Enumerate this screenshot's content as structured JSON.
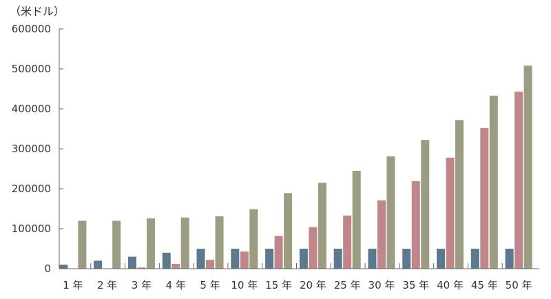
{
  "chart_data": {
    "type": "bar",
    "unit_label": "（米ドル）",
    "categories": [
      "1 年",
      "2 年",
      "3 年",
      "4 年",
      "5 年",
      "10 年",
      "15 年",
      "20 年",
      "25 年",
      "30 年",
      "35 年",
      "40 年",
      "45 年",
      "50 年"
    ],
    "series": [
      {
        "color": "#5b7a8f",
        "values": [
          10000,
          20000,
          30000,
          40000,
          50000,
          50000,
          50000,
          50000,
          50000,
          50000,
          50000,
          50000,
          50000,
          50000
        ]
      },
      {
        "color": "#c0868a",
        "values": [
          0,
          0,
          3000,
          12000,
          22000,
          43000,
          82000,
          104000,
          133000,
          171000,
          219000,
          278000,
          352000,
          443000
        ]
      },
      {
        "color": "#9c9c82",
        "values": [
          120000,
          120000,
          126000,
          128000,
          131000,
          149000,
          189000,
          215000,
          245000,
          281000,
          322000,
          372000,
          433000,
          508000
        ]
      }
    ],
    "yticks": [
      0,
      100000,
      200000,
      300000,
      400000,
      500000,
      600000
    ],
    "ylim": [
      0,
      600000
    ],
    "grid": false,
    "legend": "none"
  }
}
